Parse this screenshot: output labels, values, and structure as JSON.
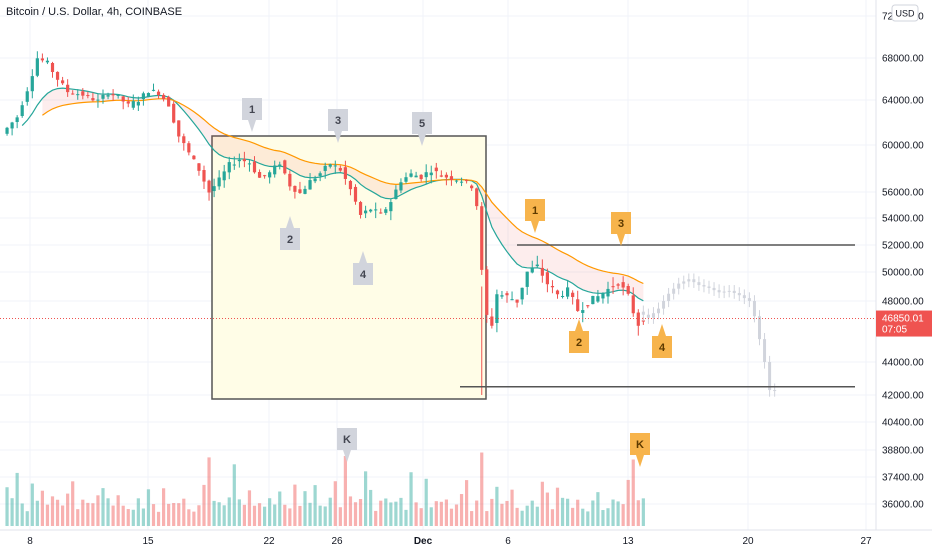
{
  "header": {
    "title": "Bitcoin / U.S. Dollar, 4h, COINBASE",
    "currency_button": "USD"
  },
  "colors": {
    "up": "#26a69a",
    "down": "#ef5350",
    "ema_fast": "#26a69a",
    "ema_slow": "#ff9800",
    "box_fill": "#fffde7",
    "grey_badge": "#d1d4dc",
    "orange_badge": "#f7b44c",
    "price_tag": "#ef5350",
    "ghost": "#d1d4dc"
  },
  "chart_data": {
    "type": "candlestick",
    "title": "Bitcoin / U.S. Dollar, 4h, COINBASE",
    "currency": "USD",
    "x_tick_labels": [
      "8",
      "15",
      "22",
      "26",
      "Dec",
      "6",
      "13",
      "20",
      "27"
    ],
    "y_tick_labels": [
      "72000.00",
      "68000.00",
      "64000.00",
      "60000.00",
      "56000.00",
      "54000.00",
      "52000.00",
      "50000.00",
      "48000.00",
      "44000.00",
      "42000.00",
      "40400.00",
      "38800.00",
      "37400.00",
      "36000.00"
    ],
    "y_ticks": [
      72000,
      68000,
      64000,
      60000,
      56000,
      54000,
      52000,
      50000,
      48000,
      44000,
      42000,
      40400,
      38800,
      37400,
      36000
    ],
    "last_price": "46850.01",
    "countdown": "07:05",
    "price_path": [
      [
        0,
        61000
      ],
      [
        3,
        62500
      ],
      [
        5,
        65000
      ],
      [
        7,
        68000
      ],
      [
        9,
        67500
      ],
      [
        11,
        66000
      ],
      [
        13,
        64800
      ],
      [
        16,
        64500
      ],
      [
        19,
        63900
      ],
      [
        21,
        64700
      ],
      [
        23,
        64300
      ],
      [
        25,
        63500
      ],
      [
        27,
        64000
      ],
      [
        29,
        64900
      ],
      [
        31,
        64700
      ],
      [
        33,
        63600
      ],
      [
        35,
        60800
      ],
      [
        37,
        59300
      ],
      [
        39,
        57900
      ],
      [
        41,
        56000
      ],
      [
        43,
        57000
      ],
      [
        45,
        58300
      ],
      [
        47,
        58800
      ],
      [
        49,
        58500
      ],
      [
        51,
        57200
      ],
      [
        53,
        57600
      ],
      [
        55,
        58500
      ],
      [
        57,
        56600
      ],
      [
        59,
        55900
      ],
      [
        61,
        56900
      ],
      [
        63,
        57600
      ],
      [
        65,
        58400
      ],
      [
        67,
        57900
      ],
      [
        69,
        56200
      ],
      [
        71,
        54200
      ],
      [
        73,
        54700
      ],
      [
        75,
        54200
      ],
      [
        77,
        55300
      ],
      [
        79,
        57000
      ],
      [
        81,
        57500
      ],
      [
        83,
        57300
      ],
      [
        85,
        57900
      ],
      [
        87,
        57400
      ],
      [
        89,
        57200
      ],
      [
        91,
        57000
      ],
      [
        93,
        56500
      ],
      [
        94,
        55000
      ],
      [
        95,
        50000
      ],
      [
        96,
        47000
      ],
      [
        97,
        46500
      ],
      [
        98,
        48500
      ],
      [
        100,
        48300
      ],
      [
        102,
        48000
      ],
      [
        104,
        50000
      ],
      [
        106,
        50400
      ],
      [
        108,
        49200
      ],
      [
        110,
        48400
      ],
      [
        112,
        48700
      ],
      [
        114,
        47400
      ],
      [
        116,
        47900
      ],
      [
        118,
        48300
      ],
      [
        120,
        48800
      ],
      [
        122,
        49300
      ],
      [
        124,
        48300
      ],
      [
        125,
        47300
      ],
      [
        126,
        46500
      ],
      [
        127,
        46900
      ]
    ],
    "ghost_path": [
      [
        127,
        47300
      ],
      [
        129,
        46900
      ],
      [
        131,
        47500
      ],
      [
        133,
        48500
      ],
      [
        135,
        49200
      ],
      [
        137,
        49500
      ],
      [
        139,
        49100
      ],
      [
        141,
        48900
      ],
      [
        143,
        48600
      ],
      [
        145,
        48700
      ],
      [
        147,
        48400
      ],
      [
        149,
        48000
      ],
      [
        150,
        47000
      ],
      [
        151,
        45500
      ],
      [
        152,
        44000
      ],
      [
        152.5,
        40800
      ],
      [
        153,
        42300
      ]
    ],
    "volume_levels": [
      0.35,
      0.6,
      0.4,
      0.85,
      0.5,
      0.3,
      0.7,
      0.45,
      0.55,
      0.38,
      0.62,
      0.41,
      0.33,
      0.5,
      0.72,
      0.28,
      0.46,
      0.58,
      0.36,
      0.44,
      0.9,
      0.52,
      0.39,
      0.61,
      0.47,
      0.34
    ],
    "annotations": {
      "grey_wave": [
        "1",
        "2",
        "3",
        "4",
        "5"
      ],
      "orange_wave": [
        "1",
        "2",
        "3",
        "4"
      ],
      "k_markers": [
        "K",
        "K"
      ]
    }
  }
}
